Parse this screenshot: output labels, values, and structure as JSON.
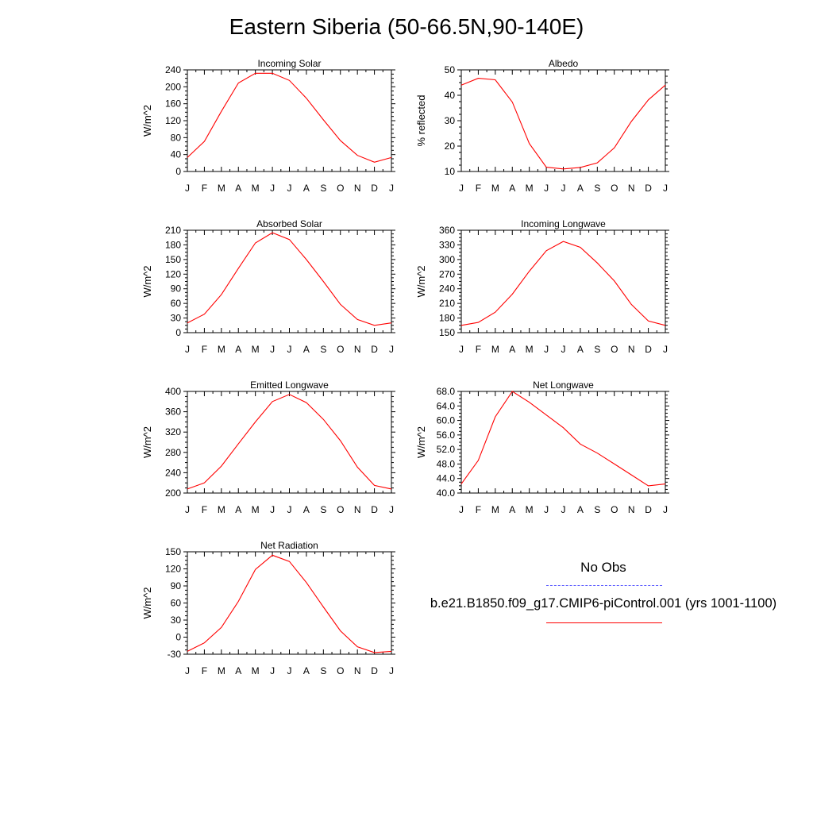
{
  "title": "Eastern Siberia (50-66.5N,90-140E)",
  "legend": {
    "obs_label": "No Obs",
    "obs_color": "#5a5aff",
    "model_label": "b.e21.B1850.f09_g17.CMIP6-piControl.001 (yrs 1001-1100)",
    "model_color": "#ff0000"
  },
  "chart_data": [
    {
      "type": "line",
      "title": "Incoming Solar",
      "ylabel": "W/m^2",
      "categories": [
        "J",
        "F",
        "M",
        "A",
        "M",
        "J",
        "J",
        "A",
        "S",
        "O",
        "N",
        "D",
        "J"
      ],
      "ylim": [
        0,
        240
      ],
      "yticks": [
        "0",
        "40",
        "80",
        "120",
        "160",
        "200",
        "240"
      ],
      "series": [
        {
          "values": [
            33,
            71,
            142,
            209,
            232,
            232,
            215,
            173,
            122,
            73,
            38,
            22,
            33
          ]
        }
      ]
    },
    {
      "type": "line",
      "title": "Albedo",
      "ylabel": "% reflected",
      "categories": [
        "J",
        "F",
        "M",
        "A",
        "M",
        "J",
        "J",
        "A",
        "S",
        "O",
        "N",
        "D",
        "J"
      ],
      "ylim": [
        10,
        50
      ],
      "yticks": [
        "10",
        "20",
        "30",
        "40",
        "50"
      ],
      "series": [
        {
          "values": [
            44,
            46.7,
            46.1,
            37.3,
            21,
            11.7,
            11,
            11.6,
            13.4,
            19.3,
            29.7,
            38.2,
            44
          ]
        }
      ]
    },
    {
      "type": "line",
      "title": "Absorbed Solar",
      "ylabel": "W/m^2",
      "categories": [
        "J",
        "F",
        "M",
        "A",
        "M",
        "J",
        "J",
        "A",
        "S",
        "O",
        "N",
        "D",
        "J"
      ],
      "ylim": [
        0,
        210
      ],
      "yticks": [
        "0",
        "30",
        "60",
        "90",
        "120",
        "150",
        "180",
        "210"
      ],
      "series": [
        {
          "values": [
            20,
            38,
            78,
            132,
            184,
            205,
            191,
            150,
            105,
            58,
            27,
            15,
            20
          ]
        }
      ]
    },
    {
      "type": "line",
      "title": "Incoming Longwave",
      "ylabel": "W/m^2",
      "categories": [
        "J",
        "F",
        "M",
        "A",
        "M",
        "J",
        "J",
        "A",
        "S",
        "O",
        "N",
        "D",
        "J"
      ],
      "ylim": [
        150,
        360
      ],
      "yticks": [
        "150",
        "180",
        "210",
        "240",
        "270",
        "300",
        "330",
        "360"
      ],
      "series": [
        {
          "values": [
            165,
            171,
            192,
            229,
            276,
            318,
            337,
            325,
            293,
            256,
            208,
            174,
            165
          ]
        }
      ]
    },
    {
      "type": "line",
      "title": "Emitted Longwave",
      "ylabel": "W/m^2",
      "categories": [
        "J",
        "F",
        "M",
        "A",
        "M",
        "J",
        "J",
        "A",
        "S",
        "O",
        "N",
        "D",
        "J"
      ],
      "ylim": [
        200,
        400
      ],
      "yticks": [
        "200",
        "240",
        "280",
        "320",
        "360",
        "400"
      ],
      "series": [
        {
          "values": [
            208,
            220,
            253,
            297,
            340,
            380,
            394,
            378,
            345,
            303,
            251,
            215,
            208
          ]
        }
      ]
    },
    {
      "type": "line",
      "title": "Net Longwave",
      "ylabel": "W/m^2",
      "categories": [
        "J",
        "F",
        "M",
        "A",
        "M",
        "J",
        "J",
        "A",
        "S",
        "O",
        "N",
        "D",
        "J"
      ],
      "ylim": [
        40,
        68
      ],
      "yticks": [
        "40.0",
        "44.0",
        "48.0",
        "52.0",
        "56.0",
        "60.0",
        "64.0",
        "68.0"
      ],
      "series": [
        {
          "values": [
            42.5,
            49,
            61,
            68,
            65,
            61.5,
            58,
            53.5,
            51,
            48,
            45,
            42,
            42.5
          ]
        }
      ]
    },
    {
      "type": "line",
      "title": "Net Radiation",
      "ylabel": "W/m^2",
      "categories": [
        "J",
        "F",
        "M",
        "A",
        "M",
        "J",
        "J",
        "A",
        "S",
        "O",
        "N",
        "D",
        "J"
      ],
      "ylim": [
        -30,
        150
      ],
      "yticks": [
        "-30",
        "0",
        "30",
        "60",
        "90",
        "120",
        "150"
      ],
      "series": [
        {
          "values": [
            -25,
            -10,
            17,
            63,
            119,
            144,
            133,
            96,
            53,
            11,
            -17,
            -27,
            -25
          ]
        }
      ]
    }
  ]
}
